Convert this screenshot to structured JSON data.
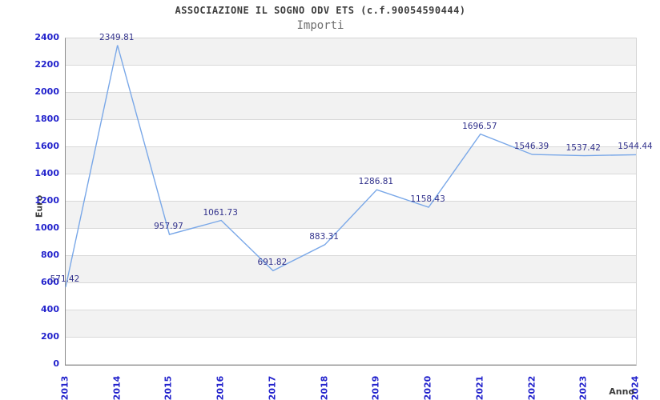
{
  "header": {
    "title": "ASSOCIAZIONE IL SOGNO ODV ETS (c.f.90054590444)",
    "subtitle": "Importi"
  },
  "chart_data": {
    "type": "line",
    "title": "ASSOCIAZIONE IL SOGNO ODV ETS (c.f.90054590444)",
    "subtitle": "Importi",
    "xlabel": "Anno",
    "ylabel": "Euro",
    "categories": [
      "2013",
      "2014",
      "2015",
      "2016",
      "2017",
      "2018",
      "2019",
      "2020",
      "2021",
      "2022",
      "2023",
      "2024"
    ],
    "series": [
      {
        "name": "Importi",
        "values": [
          571.42,
          2349.81,
          957.97,
          1061.73,
          691.82,
          883.31,
          1286.81,
          1158.43,
          1696.57,
          1546.39,
          1537.42,
          1544.44
        ],
        "point_labels": [
          "571.42",
          "2349.81",
          "957.97",
          "1061.73",
          "691.82",
          "883.31",
          "1286.81",
          "1158.43",
          "1696.57",
          "1546.39",
          "1537.42",
          "1544.44"
        ]
      }
    ],
    "ylim": [
      0,
      2400
    ],
    "ytick_step": 200,
    "ytick_labels": [
      "0",
      "200",
      "400",
      "600",
      "800",
      "1000",
      "1200",
      "1400",
      "1600",
      "1800",
      "2000",
      "2200",
      "2400"
    ],
    "grid": "horizontal gridlines with alternating gray/white bands",
    "legend_position": "none",
    "colors": {
      "line": "#7aa8e8",
      "axis_tick_text": "#2222cc",
      "point_label_text": "#32328c",
      "band_gray": "#f2f2f2",
      "band_white": "#ffffff",
      "gridline": "#d9d9d9",
      "axis_line": "#8a8a8a",
      "title_text": "#3c3c3c",
      "subtitle_text": "#6e6e6e"
    }
  }
}
